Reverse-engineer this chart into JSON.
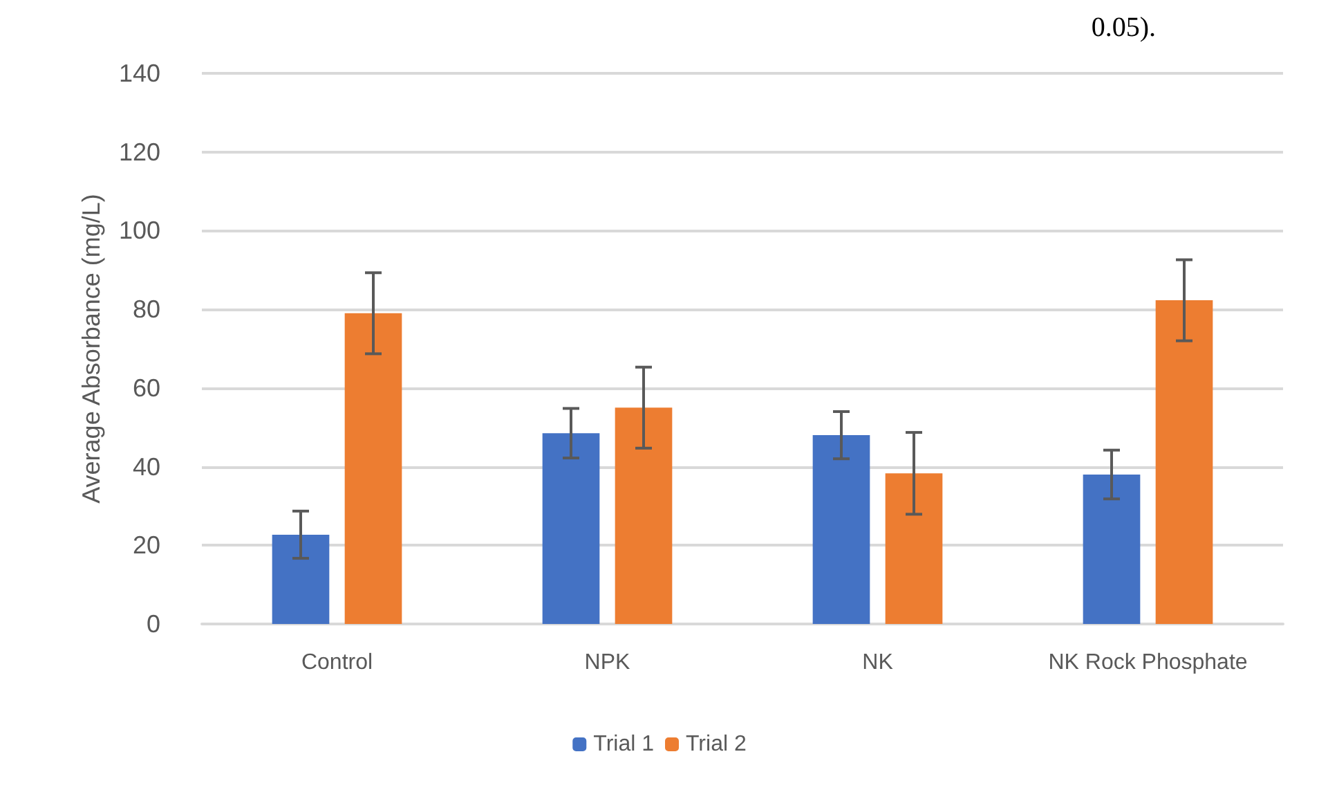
{
  "chart_data": {
    "type": "bar",
    "ylabel": "Average Absorbance (mg/L)",
    "annotations": [
      "0.05)."
    ],
    "categories": [
      "Control",
      "NPK",
      "NK",
      "NK Rock Phosphate"
    ],
    "series": [
      {
        "name": "Trial 1",
        "color": "#4472c4",
        "values": [
          22.7,
          48.5,
          48,
          38
        ],
        "errors": [
          6,
          6.3,
          6,
          6.2
        ]
      },
      {
        "name": "Trial 2",
        "color": "#ed7d31",
        "values": [
          79,
          55,
          38.3,
          82.3
        ],
        "errors": [
          10.3,
          10.3,
          10.4,
          10.3
        ]
      }
    ],
    "ylim": [
      0,
      140
    ],
    "yticks": [
      0,
      20,
      40,
      60,
      80,
      100,
      120,
      140
    ],
    "grid": "y",
    "legend": "bottom"
  }
}
